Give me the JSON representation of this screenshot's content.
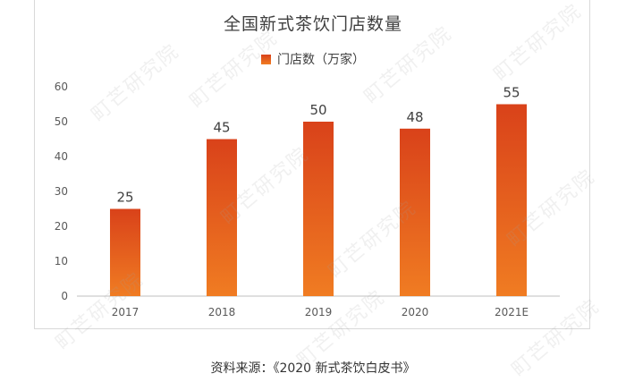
{
  "chart_data": {
    "type": "bar",
    "title": "全国新式茶饮门店数量",
    "series": [
      {
        "name": "门店数（万家）",
        "values": [
          25,
          45,
          50,
          48,
          55
        ]
      }
    ],
    "categories": [
      "2017",
      "2018",
      "2019",
      "2020",
      "2021E"
    ],
    "data_labels": [
      "25",
      "45",
      "50",
      "48",
      "55"
    ],
    "yticks": [
      "0",
      "10",
      "20",
      "30",
      "40",
      "50",
      "60"
    ],
    "ylim": [
      0,
      60
    ],
    "grid": false,
    "legend_position": "top-center",
    "colors": {
      "bar_top": "#d9421a",
      "bar_bottom": "#f07c22",
      "axis": "#bfbfbf"
    }
  },
  "source_text": "资料来源：《2020 新式茶饮白皮书》",
  "watermark_text": "町芒研究院"
}
